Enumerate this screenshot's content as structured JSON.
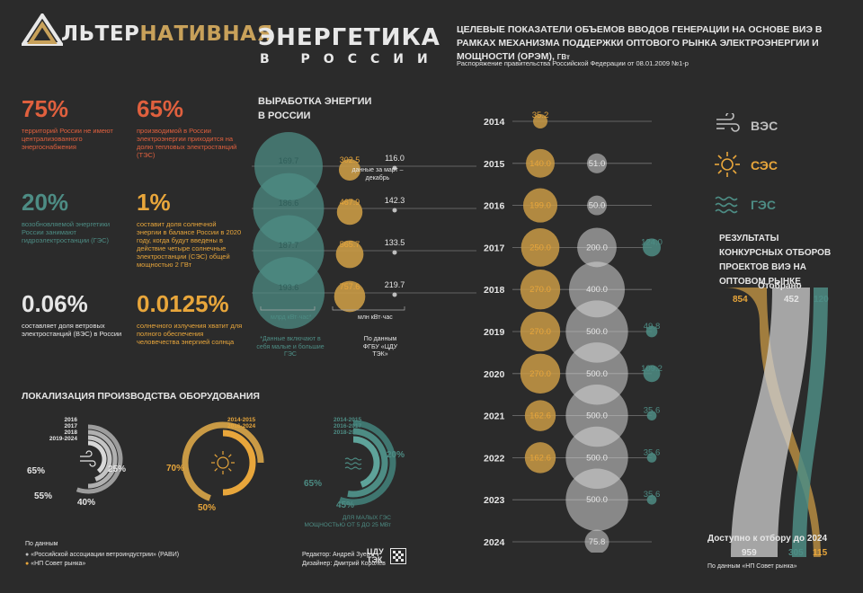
{
  "colors": {
    "bg": "#2b2b2b",
    "wind": "#bfbfbf",
    "solar": "#c99a45",
    "hydro": "#4d8c84",
    "orange": "#e0603e",
    "gold": "#e8a63b",
    "white": "#e6e6e6",
    "line": "#777777"
  },
  "logo": {
    "part1": "ЛЬТЕР",
    "part2": "НАТИВНАЯ"
  },
  "title": {
    "main": "ЭНЕРГЕТИКА",
    "sub": "В РОССИИ"
  },
  "stats": [
    {
      "value": "75%",
      "text": "территорий России не имеют централизованного энергоснабжения"
    },
    {
      "value": "65%",
      "text": "производимой в России электроэнергии приходится на долю тепловых электростанций (ТЭС)"
    },
    {
      "value": "20%",
      "text": "возобновляемой энергетики России занимают гидроэлектростанции (ГЭС)"
    },
    {
      "value": "1%",
      "text": "составит доля солнечной энергии в балансе России в 2020 году, когда будут введены в действие четыре солнечные электростанции (СЭС) общей мощностью 2 ГВт"
    },
    {
      "value": "0.06%",
      "text": "составляет доля ветровых электростанций (ВЭС) в России"
    },
    {
      "value": "0.0125%",
      "text": "солнечного излучения хватит для полного обеспечения человечества энергией солнца"
    }
  ],
  "generation": {
    "title": "ВЫРАБОТКА ЭНЕРГИИ В РОССИИ",
    "unit1": "млрд кВт·час*",
    "unit2": "млн кВт·час",
    "note1": "*Данные включают в себя малые и большие ГЭС",
    "note2": "данные за март – декабрь",
    "source": "По данным ФГБУ «ЦДУ ТЭК»",
    "rows": [
      {
        "year": "2015",
        "hydro": 169.7,
        "solar": 302.5,
        "wind": 116.0
      },
      {
        "year": "2016",
        "hydro": 186.6,
        "solar": 467.9,
        "wind": 142.3
      },
      {
        "year": "2017",
        "hydro": 187.7,
        "solar": 565.7,
        "wind": 133.5
      },
      {
        "year": "2018",
        "hydro": 193.6,
        "solar": 757.6,
        "wind": 219.7
      }
    ]
  },
  "targets": {
    "title": "ЦЕЛЕВЫЕ ПОКАЗАТЕЛИ ОБЪЕМОВ ВВОДОВ ГЕНЕРАЦИИ НА ОСНОВЕ ВИЭ В РАМКАХ МЕХАНИЗМА ПОДДЕРЖКИ ОПТОВОГО РЫНКА ЭЛЕКТРОЭНЕРГИИ И МОЩНОСТИ (ОРЭМ),",
    "unit": "ГВт",
    "subtitle": "Распоряжение правительства Российской Федерации от 08.01.2009 №1-р",
    "rows": [
      {
        "year": "2014",
        "solar": 35.2,
        "wind": null,
        "hydro": null
      },
      {
        "year": "2015",
        "solar": 140.0,
        "wind": 51.0,
        "hydro": null
      },
      {
        "year": "2016",
        "solar": 199.0,
        "wind": 50.0,
        "hydro": null
      },
      {
        "year": "2017",
        "solar": 250.0,
        "wind": 200.0,
        "hydro": 124.0
      },
      {
        "year": "2018",
        "solar": 270.0,
        "wind": 400.0,
        "hydro": null
      },
      {
        "year": "2019",
        "solar": 270.0,
        "wind": 500.0,
        "hydro": 49.8
      },
      {
        "year": "2020",
        "solar": 270.0,
        "wind": 500.0,
        "hydro": 109.2
      },
      {
        "year": "2021",
        "solar": 162.6,
        "wind": 500.0,
        "hydro": 35.6
      },
      {
        "year": "2022",
        "solar": 162.6,
        "wind": 500.0,
        "hydro": 35.6
      },
      {
        "year": "2023",
        "solar": null,
        "wind": 500.0,
        "hydro": 35.6
      },
      {
        "year": "2024",
        "solar": null,
        "wind": 75.8,
        "hydro": null
      }
    ]
  },
  "legend": [
    {
      "label": "ВЭС",
      "icon": "wind-icon",
      "color": "#bfbfbf"
    },
    {
      "label": "СЭС",
      "icon": "sun-icon",
      "color": "#e8a63b"
    },
    {
      "label": "ГЭС",
      "icon": "water-icon",
      "color": "#4d8c84"
    }
  ],
  "competition": {
    "title": "РЕЗУЛЬТАТЫ КОНКУРСНЫХ ОТБОРОВ ПРОЕКТОВ ВИЭ НА ОПТОВОМ РЫНКЕ",
    "selected_label": "Отобрано",
    "available_label": "Доступно к отбору до 2024",
    "source": "По данным «НП Совет рынка»",
    "selected": {
      "solar": "854",
      "wind": "452",
      "hydro": "120"
    },
    "available": {
      "wind": "959",
      "hydro": "305",
      "solar": "115"
    }
  },
  "localization": {
    "title": "ЛОКАЛИЗАЦИЯ ПРОИЗВОДСТВА ОБОРУДОВАНИЯ",
    "wind": {
      "years": [
        "2016",
        "2017",
        "2018",
        "2019-2024"
      ],
      "percents": [
        "65%",
        "25%",
        "55%",
        "40%"
      ]
    },
    "solar": {
      "years": [
        "2014-2015",
        "2016-2024"
      ],
      "percents": [
        "70%",
        "50%"
      ]
    },
    "hydro": {
      "years": [
        "2014-2015",
        "2016-2017",
        "2018-2024"
      ],
      "percents": [
        "65%",
        "20%",
        "45%"
      ],
      "note": "ДЛЯ МАЛЫХ ГЭС МОЩНОСТЬЮ ОТ 5 ДО 25 МВт"
    }
  },
  "footer": {
    "source_title": "По данным",
    "source1": "«Российской ассоциации ветроиндустрии» (РАВИ)",
    "source2": "«НП Совет рынка»",
    "editor": "Редактор: Андрей Зуев",
    "designer": "Дизайнер: Дмитрий Королев",
    "cdu_line1": "ЦДУ",
    "cdu_line2": "ТЭК"
  }
}
